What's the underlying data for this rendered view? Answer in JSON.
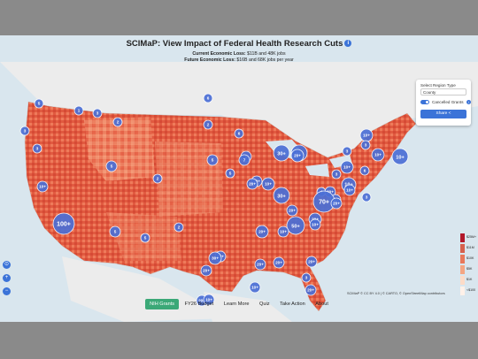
{
  "app": {
    "title": "SCIMaP: View Impact of Federal Health Research Cuts"
  },
  "summary": {
    "current_label": "Current Economic Loss:",
    "current_value": "$11B and 48K jobs",
    "future_label": "Future Economic Loss:",
    "future_value": "$16B and 68K jobs per year"
  },
  "panel": {
    "region_label": "Select Region Type",
    "region_value": "County",
    "toggle_label": "Cancelled Grants",
    "share_label": "Share"
  },
  "legend": [
    "$25M+",
    "$11M",
    "$10K",
    "$5K",
    "$1K",
    "<$100"
  ],
  "attribution": "SCIMaP © CC BY 4.0 | © CARTO, © OpenStreetMap contributors",
  "nav": [
    "NIH Grants",
    "FY26 Budget",
    "Learn More",
    "Quiz",
    "Take Action",
    "About"
  ],
  "clusters": [
    {
      "label": "5"
    },
    {
      "label": "1"
    },
    {
      "label": "3"
    },
    {
      "label": "2"
    },
    {
      "label": "6"
    },
    {
      "label": "2"
    },
    {
      "label": "3"
    },
    {
      "label": "3"
    },
    {
      "label": "6"
    },
    {
      "label": "10+"
    },
    {
      "label": "40+"
    },
    {
      "label": "3"
    },
    {
      "label": "3"
    },
    {
      "label": "10+"
    },
    {
      "label": "10+"
    },
    {
      "label": "10+"
    },
    {
      "label": "3"
    },
    {
      "label": "6"
    },
    {
      "label": "10+"
    },
    {
      "label": "4"
    },
    {
      "label": "20+"
    },
    {
      "label": "30+"
    },
    {
      "label": "20+"
    },
    {
      "label": "10+"
    },
    {
      "label": "10+"
    },
    {
      "label": "3"
    },
    {
      "label": "20+"
    },
    {
      "label": "5"
    },
    {
      "label": "8"
    },
    {
      "label": "7"
    },
    {
      "label": "20+"
    },
    {
      "label": "20+"
    },
    {
      "label": "30+"
    },
    {
      "label": "70+"
    },
    {
      "label": "20+"
    },
    {
      "label": "20+"
    },
    {
      "label": "20+"
    },
    {
      "label": "5"
    },
    {
      "label": "50+"
    },
    {
      "label": "20+"
    },
    {
      "label": "10+"
    },
    {
      "label": "10+"
    },
    {
      "label": "10+"
    },
    {
      "label": "2"
    },
    {
      "label": "5"
    },
    {
      "label": "5"
    },
    {
      "label": "100+"
    },
    {
      "label": "5"
    },
    {
      "label": "2"
    },
    {
      "label": "20+"
    },
    {
      "label": "20+"
    },
    {
      "label": "20+"
    },
    {
      "label": "10+"
    },
    {
      "label": "20+"
    },
    {
      "label": "20+"
    },
    {
      "label": "3"
    },
    {
      "label": "20+"
    },
    {
      "label": "10+"
    },
    {
      "label": "30+"
    },
    {
      "label": "20+"
    }
  ]
}
